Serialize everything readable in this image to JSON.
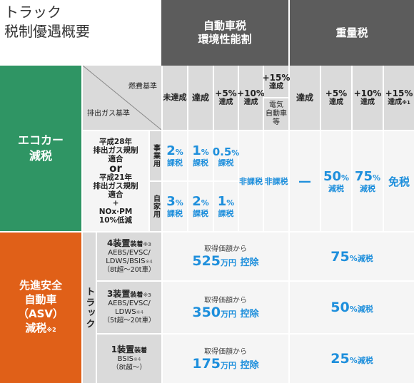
{
  "title": {
    "line1": "トラック",
    "line2": "税制優遇概要"
  },
  "header": {
    "car_tax_line1": "自動車税",
    "car_tax_line2": "環境性能割",
    "weight_tax": "重量税"
  },
  "corner": {
    "fuel_standard": "燃費基準",
    "exhaust_standard": "排出ガス基準"
  },
  "car_tax_columns": {
    "c1": "未達成",
    "c2": "達成",
    "c3a": "+5%",
    "c3b": "達成",
    "c4a": "+10%",
    "c4b": "達成",
    "c5a": "+15%",
    "c5b": "達成",
    "c5c": "電気",
    "c5d": "自動車",
    "c5e": "等"
  },
  "weight_tax_columns": {
    "c1": "達成",
    "c2a": "+5%",
    "c2b": "達成",
    "c3a": "+10%",
    "c3b": "達成",
    "c4a": "+15%",
    "c4b": "達成",
    "c4note": "※1"
  },
  "ecocar": {
    "label_line1": "エコカー",
    "label_line2": "減税",
    "cond_line1": "平成28年",
    "cond_line2": "排出ガス規制",
    "cond_line3": "適合",
    "cond_line4": "or",
    "cond_line5": "平成21年",
    "cond_line6": "排出ガス規制",
    "cond_line7": "適合",
    "cond_line8": "+",
    "cond_line9": "NOx·PM",
    "cond_line10": "10%低減",
    "business": "事業用",
    "private": "自家用",
    "business_rates": [
      {
        "num": "2",
        "pct": "%",
        "txt": "課税"
      },
      {
        "num": "1",
        "pct": "%",
        "txt": "課税"
      },
      {
        "num": "0.5",
        "pct": "%",
        "txt": "課税"
      }
    ],
    "private_rates": [
      {
        "num": "3",
        "pct": "%",
        "txt": "課税"
      },
      {
        "num": "2",
        "pct": "%",
        "txt": "課税"
      },
      {
        "num": "1",
        "pct": "%",
        "txt": "課税"
      }
    ],
    "exempt1": "非課税",
    "exempt2": "非課税",
    "wt_dash": "—",
    "wt_50_num": "50",
    "wt_50_pct": "%",
    "wt_50_txt": "減税",
    "wt_75_num": "75",
    "wt_75_pct": "%",
    "wt_75_txt": "減税",
    "wt_free": "免税"
  },
  "asv": {
    "label_line1": "先進安全",
    "label_line2": "自動車",
    "label_line3": "（ASV）",
    "label_line4": "減税",
    "label_note": "※2",
    "truck": "トラック",
    "rows": [
      {
        "devices_num": "4",
        "devices_txt": "装置",
        "devices_suffix": "装着",
        "note": "※3",
        "sys1": "AEBS/EVSC/",
        "sys2": "LDWS/BSIS",
        "sys_note": "※4",
        "weight": "（8t超〜20t車）",
        "from": "取得価額から",
        "amount": "525",
        "unit": "万円",
        "deduct": "控除",
        "wt_num": "75",
        "wt_pct": "%",
        "wt_txt": "減税"
      },
      {
        "devices_num": "3",
        "devices_txt": "装置",
        "devices_suffix": "装着",
        "note": "※3",
        "sys1": "AEBS/EVSC/",
        "sys2": "LDWS",
        "sys_note": "※4",
        "weight": "（5t超〜20t車）",
        "from": "取得価額から",
        "amount": "350",
        "unit": "万円",
        "deduct": "控除",
        "wt_num": "50",
        "wt_pct": "%",
        "wt_txt": "減税"
      },
      {
        "devices_num": "1",
        "devices_txt": "装置",
        "devices_suffix": "装着",
        "note": "",
        "sys1": "BSIS",
        "sys2": "",
        "sys_note": "※4",
        "weight": "（8t超〜）",
        "from": "取得価額から",
        "amount": "175",
        "unit": "万円",
        "deduct": "控除",
        "wt_num": "25",
        "wt_pct": "%",
        "wt_txt": "減税"
      }
    ]
  },
  "colors": {
    "green": "#2f9564",
    "orange": "#e06018",
    "dark": "#5c5c5c",
    "blue": "#1e8fdc",
    "grey": "#dadada"
  }
}
